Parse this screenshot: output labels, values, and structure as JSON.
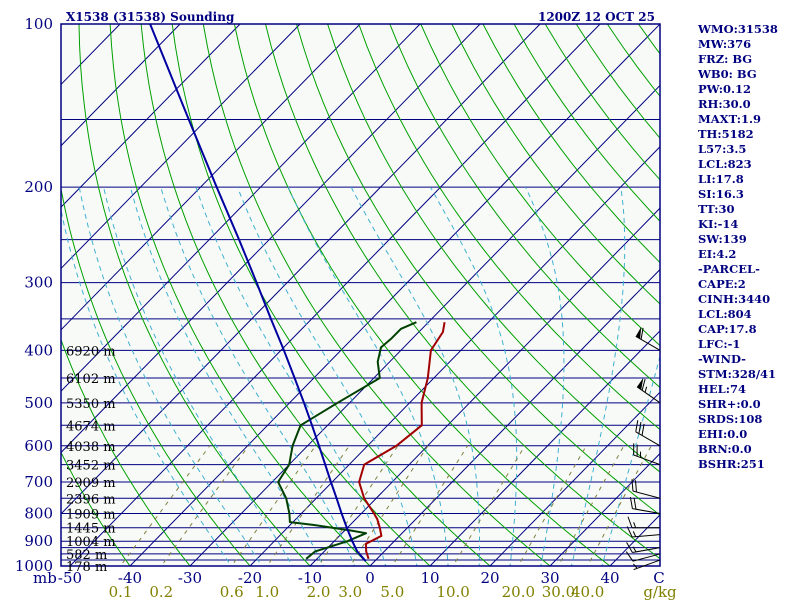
{
  "chart_data": {
    "type": "skew-t",
    "title": "X1538 (31538) Sounding",
    "valid_time": "1200Z 12 OCT 25",
    "y_axis": {
      "label": "mb",
      "scale": "log",
      "range": [
        1000,
        100
      ],
      "tick_labels": [
        "100",
        "200",
        "300",
        "400",
        "500",
        "600",
        "700",
        "800",
        "900",
        "1000"
      ]
    },
    "x_axis": {
      "label": "C",
      "range": [
        -50,
        50
      ],
      "tick_labels": [
        "-50",
        "-40",
        "-30",
        "-20",
        "-10",
        "0",
        "10",
        "20",
        "30",
        "40"
      ]
    },
    "mixing_ratio_axis": {
      "label": "g/kg",
      "tick_labels": [
        "0.1",
        "0.2",
        "0.6",
        "1.0",
        "2.0",
        "3.0",
        "5.0",
        "10.0",
        "20.0",
        "30.0",
        "40.0"
      ]
    },
    "heights": [
      {
        "p": 400,
        "label": "6920 m"
      },
      {
        "p": 450,
        "label": "6102 m"
      },
      {
        "p": 500,
        "label": "5350 m"
      },
      {
        "p": 550,
        "label": "4674 m"
      },
      {
        "p": 600,
        "label": "4038 m"
      },
      {
        "p": 650,
        "label": "3452 m"
      },
      {
        "p": 700,
        "label": "2909 m"
      },
      {
        "p": 750,
        "label": "2396 m"
      },
      {
        "p": 800,
        "label": "1909 m"
      },
      {
        "p": 850,
        "label": "1445 m"
      },
      {
        "p": 900,
        "label": "1004 m"
      },
      {
        "p": 950,
        "label": "582 m"
      },
      {
        "p": 1000,
        "label": "178 m"
      }
    ],
    "series": [
      {
        "name": "Temperature",
        "color": "#a00000",
        "points": [
          [
            970,
            -1.4
          ],
          [
            940,
            -3.0
          ],
          [
            910,
            -4.3
          ],
          [
            880,
            -3.0
          ],
          [
            850,
            -4.6
          ],
          [
            820,
            -6.4
          ],
          [
            800,
            -7.9
          ],
          [
            750,
            -12.0
          ],
          [
            700,
            -15.5
          ],
          [
            650,
            -17.5
          ],
          [
            600,
            -15.2
          ],
          [
            550,
            -14.3
          ],
          [
            500,
            -18.0
          ],
          [
            450,
            -21.0
          ],
          [
            400,
            -25.0
          ],
          [
            370,
            -26.0
          ],
          [
            355,
            -27.3
          ]
        ]
      },
      {
        "name": "Dewpoint",
        "color": "#004000",
        "points": [
          [
            970,
            -11.8
          ],
          [
            940,
            -11.5
          ],
          [
            900,
            -7.8
          ],
          [
            870,
            -6.0
          ],
          [
            860,
            -9.0
          ],
          [
            840,
            -16.0
          ],
          [
            830,
            -20.5
          ],
          [
            800,
            -22.0
          ],
          [
            750,
            -25.0
          ],
          [
            700,
            -29.0
          ],
          [
            650,
            -30.0
          ],
          [
            600,
            -32.5
          ],
          [
            550,
            -34.5
          ],
          [
            500,
            -32.0
          ],
          [
            450,
            -29.0
          ],
          [
            420,
            -32.0
          ],
          [
            395,
            -33.8
          ],
          [
            380,
            -33.5
          ],
          [
            365,
            -33.5
          ],
          [
            355,
            -32.0
          ]
        ]
      },
      {
        "name": "Parcel",
        "color": "#0000a0",
        "points": [
          [
            980,
            -1.5
          ],
          [
            940,
            -4.5
          ],
          [
            900,
            -7.0
          ],
          [
            850,
            -10.1
          ],
          [
            800,
            -13.3
          ],
          [
            750,
            -16.6
          ],
          [
            700,
            -20.2
          ],
          [
            650,
            -24.0
          ],
          [
            600,
            -28.1
          ],
          [
            550,
            -32.6
          ],
          [
            500,
            -37.6
          ],
          [
            450,
            -43.2
          ],
          [
            400,
            -49.5
          ],
          [
            350,
            -56.8
          ],
          [
            300,
            -65.1
          ],
          [
            250,
            -75.0
          ],
          [
            200,
            -87.3
          ],
          [
            150,
            -103.0
          ],
          [
            100,
            -125.0
          ]
        ]
      }
    ],
    "winds": [
      {
        "p": 975,
        "dir": 250,
        "speed": 5
      },
      {
        "p": 950,
        "dir": 255,
        "speed": 10
      },
      {
        "p": 925,
        "dir": 260,
        "speed": 15
      },
      {
        "p": 875,
        "dir": 265,
        "speed": 15
      },
      {
        "p": 850,
        "dir": 270,
        "speed": 15
      },
      {
        "p": 800,
        "dir": 280,
        "speed": 20
      },
      {
        "p": 750,
        "dir": 285,
        "speed": 20
      },
      {
        "p": 650,
        "dir": 290,
        "speed": 25
      },
      {
        "p": 600,
        "dir": 300,
        "speed": 30
      },
      {
        "p": 500,
        "dir": 305,
        "speed": 65
      },
      {
        "p": 400,
        "dir": 300,
        "speed": 60
      }
    ]
  },
  "indices": [
    "WMO:31538",
    "MW:376",
    "FRZ: BG",
    "WB0: BG",
    "PW:0.12",
    "RH:30.0",
    "MAXT:1.9",
    "TH:5182",
    "L57:3.5",
    "LCL:823",
    "LI:17.8",
    "SI:16.3",
    "TT:30",
    "KI:-14",
    "SW:139",
    "EI:4.2",
    "-PARCEL-",
    "CAPE:2",
    "CINH:3440",
    "LCL:804",
    "CAP:17.8",
    "LFC:-1",
    "-WIND-",
    "STM:328/41",
    "HEL:74",
    "SHR+:0.0",
    "SRDS:108",
    "EHI:0.0",
    "BRN:0.0",
    "BSHR:251"
  ],
  "colors": {
    "frame": "#000080",
    "isobar": "#000080",
    "isotherm": "#000080",
    "dry_adiabat": "#00a000",
    "moist_adiabat": "#40b0d0",
    "mixing_ratio": "#808040",
    "plot_bg": "#f8faf8"
  }
}
